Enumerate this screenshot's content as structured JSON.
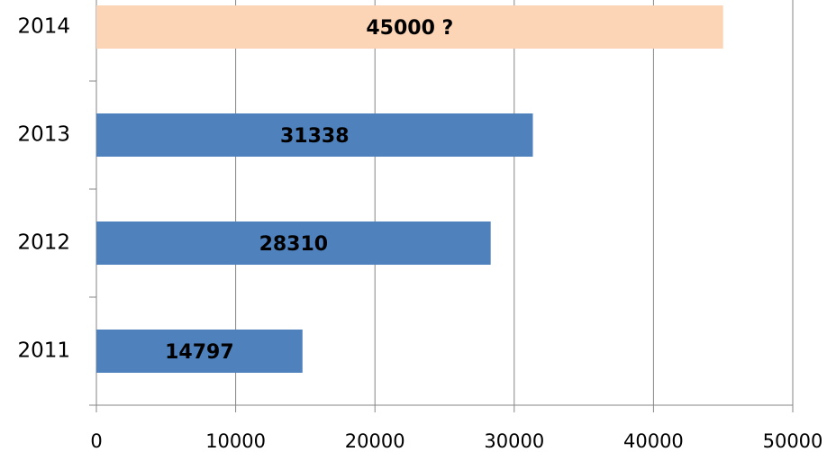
{
  "chart_data": {
    "type": "hbar",
    "categories": [
      "2011",
      "2012",
      "2013",
      "2014"
    ],
    "values": [
      14797,
      28310,
      31338,
      45000
    ],
    "value_labels": [
      "14797",
      "28310",
      "31338",
      "45000 ?"
    ],
    "colors": [
      "#4f81bd",
      "#4f81bd",
      "#4f81bd",
      "#fbd5b5"
    ],
    "xlim": [
      0,
      50000
    ],
    "xticks": [
      0,
      10000,
      20000,
      30000,
      40000,
      50000
    ],
    "grid": true
  }
}
